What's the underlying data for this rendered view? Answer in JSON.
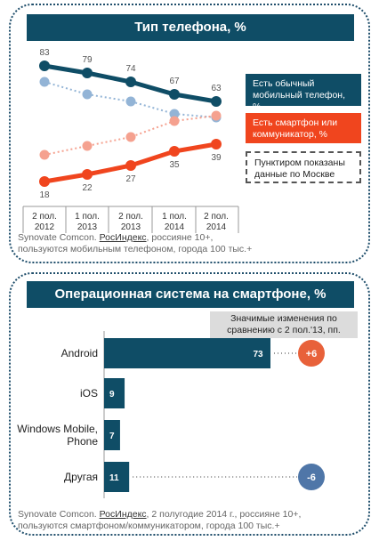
{
  "chart_data": [
    {
      "type": "line",
      "title": "Тип телефона, %",
      "categories": [
        "2 пол. 2012",
        "1 пол. 2013",
        "2 пол. 2013",
        "1 пол. 2014",
        "2 пол. 2014"
      ],
      "categories_lines": [
        [
          "2 пол.",
          "2012"
        ],
        [
          "1 пол.",
          "2013"
        ],
        [
          "2 пол.",
          "2013"
        ],
        [
          "1 пол.",
          "2014"
        ],
        [
          "2 пол.",
          "2014"
        ]
      ],
      "ylim": [
        0,
        100
      ],
      "series": [
        {
          "name": "Есть обычный мобильный телефон, %",
          "values": [
            83,
            79,
            74,
            67,
            63
          ],
          "color": "#0f4d66",
          "style": "solid"
        },
        {
          "name": "Есть смартфон или коммуникатор, %",
          "values": [
            18,
            22,
            27,
            35,
            39
          ],
          "color": "#f0451e",
          "style": "solid"
        },
        {
          "name": "Москва обычный",
          "values": [
            74,
            67,
            63,
            56,
            54
          ],
          "color": "#93b4d6",
          "style": "dotted"
        },
        {
          "name": "Москва смартфон",
          "values": [
            33,
            38,
            43,
            52,
            55
          ],
          "color": "#f5a18f",
          "style": "dotted"
        }
      ],
      "legend_lines": [
        [
          "Есть обычный",
          "мобильный телефон, %"
        ],
        [
          "Есть смартфон или",
          "коммуникатор, %"
        ],
        [
          "Пунктиром показаны",
          "данные по Москве"
        ]
      ],
      "source_lines": [
        "Synovate Comcon. ",
        "РосИндекс",
        ", россияне 10+,",
        "пользуются мобильным телефоном, города 100 тыс.+"
      ]
    },
    {
      "type": "bar",
      "title": "Операционная система на смартфоне, %",
      "categories": [
        "Android",
        "iOS",
        "Windows Mobile, Phone",
        "Другая"
      ],
      "category_lines": [
        [
          "Android"
        ],
        [
          "iOS"
        ],
        [
          "Windows Mobile,",
          "Phone"
        ],
        [
          "Другая"
        ]
      ],
      "values": [
        73,
        9,
        7,
        11
      ],
      "changes": [
        "+6",
        "",
        "",
        "-6"
      ],
      "change_colors": [
        "#e8613a",
        "",
        "",
        "#4f76a8"
      ],
      "bar_color": "#0f4d66",
      "note_lines": [
        "Значимые изменения по",
        "сравнению с 2 пол.'13, пп."
      ],
      "source_lines": [
        "Synovate Comcon. ",
        "РосИндекс",
        ", 2 полугодие 2014 г., россияне 10+,",
        "пользуются смартфоном/коммуникатором, города 100 тыс.+"
      ]
    }
  ]
}
